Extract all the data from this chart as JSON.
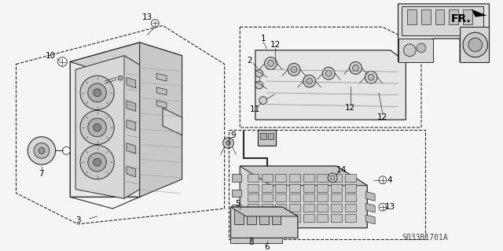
{
  "bg_color": "#f5f5f5",
  "diagram_code": "S033B1701A",
  "fr_label": "FR.",
  "line_color": "#2a2a2a",
  "label_fontsize": 7.5,
  "code_fontsize": 7.0,
  "fr_fontsize": 10
}
